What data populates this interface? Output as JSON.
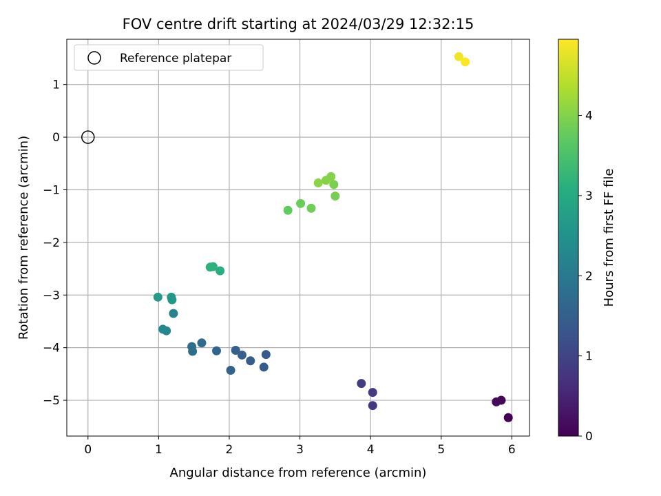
{
  "chart_data": {
    "type": "scatter",
    "title": "FOV centre drift starting at 2024/03/29 12:32:15",
    "xlabel": "Angular distance from reference (arcmin)",
    "ylabel": "Rotation from reference (arcmin)",
    "xlim": [
      -0.3,
      6.25
    ],
    "ylim": [
      -5.68,
      1.86
    ],
    "xticks": [
      0,
      1,
      2,
      3,
      4,
      5,
      6
    ],
    "xtick_labels": [
      "0",
      "1",
      "2",
      "3",
      "4",
      "5",
      "6"
    ],
    "yticks": [
      1,
      0,
      -1,
      -2,
      -3,
      -4,
      -5
    ],
    "ytick_labels": [
      "1",
      "0",
      "−1",
      "−2",
      "−3",
      "−4",
      "−5"
    ],
    "grid": true,
    "legend": {
      "position": "upper-left",
      "entries": [
        "Reference platepar"
      ]
    },
    "reference_point": {
      "x": 0,
      "y": 0
    },
    "colorbar": {
      "label": "Hours from first FF file",
      "colormap": "viridis",
      "range": [
        0,
        4.95
      ],
      "ticks": [
        0,
        1,
        2,
        3,
        4
      ],
      "tick_labels": [
        "0",
        "1",
        "2",
        "3",
        "4"
      ]
    },
    "points": [
      {
        "x": 5.95,
        "y": -5.33,
        "c": 0.0
      },
      {
        "x": 5.85,
        "y": -5.0,
        "c": 0.08
      },
      {
        "x": 5.78,
        "y": -5.03,
        "c": 0.12
      },
      {
        "x": 4.03,
        "y": -5.1,
        "c": 0.8
      },
      {
        "x": 4.03,
        "y": -4.85,
        "c": 0.83
      },
      {
        "x": 3.87,
        "y": -4.68,
        "c": 0.87
      },
      {
        "x": 2.52,
        "y": -4.13,
        "c": 1.4
      },
      {
        "x": 2.49,
        "y": -4.37,
        "c": 1.43
      },
      {
        "x": 2.3,
        "y": -4.25,
        "c": 1.47
      },
      {
        "x": 2.18,
        "y": -4.14,
        "c": 1.5
      },
      {
        "x": 2.09,
        "y": -4.05,
        "c": 1.53
      },
      {
        "x": 2.02,
        "y": -4.43,
        "c": 1.57
      },
      {
        "x": 1.82,
        "y": -4.06,
        "c": 1.6
      },
      {
        "x": 1.61,
        "y": -3.91,
        "c": 1.7
      },
      {
        "x": 1.48,
        "y": -4.07,
        "c": 1.75
      },
      {
        "x": 1.47,
        "y": -3.98,
        "c": 1.8
      },
      {
        "x": 1.21,
        "y": -3.35,
        "c": 2.2
      },
      {
        "x": 1.11,
        "y": -3.68,
        "c": 2.25
      },
      {
        "x": 1.06,
        "y": -3.65,
        "c": 2.3
      },
      {
        "x": 1.19,
        "y": -3.09,
        "c": 2.6
      },
      {
        "x": 1.18,
        "y": -3.04,
        "c": 2.62
      },
      {
        "x": 0.99,
        "y": -3.04,
        "c": 2.68
      },
      {
        "x": 1.87,
        "y": -2.54,
        "c": 3.1
      },
      {
        "x": 1.77,
        "y": -2.46,
        "c": 3.13
      },
      {
        "x": 1.73,
        "y": -2.47,
        "c": 3.16
      },
      {
        "x": 2.83,
        "y": -1.39,
        "c": 3.75
      },
      {
        "x": 3.01,
        "y": -1.26,
        "c": 3.8
      },
      {
        "x": 3.16,
        "y": -1.35,
        "c": 3.85
      },
      {
        "x": 3.5,
        "y": -1.12,
        "c": 3.9
      },
      {
        "x": 3.48,
        "y": -0.9,
        "c": 3.95
      },
      {
        "x": 3.44,
        "y": -0.75,
        "c": 4.0
      },
      {
        "x": 3.37,
        "y": -0.82,
        "c": 4.03
      },
      {
        "x": 3.26,
        "y": -0.87,
        "c": 4.06
      },
      {
        "x": 5.25,
        "y": 1.53,
        "c": 4.85
      },
      {
        "x": 5.34,
        "y": 1.43,
        "c": 4.95
      }
    ]
  }
}
